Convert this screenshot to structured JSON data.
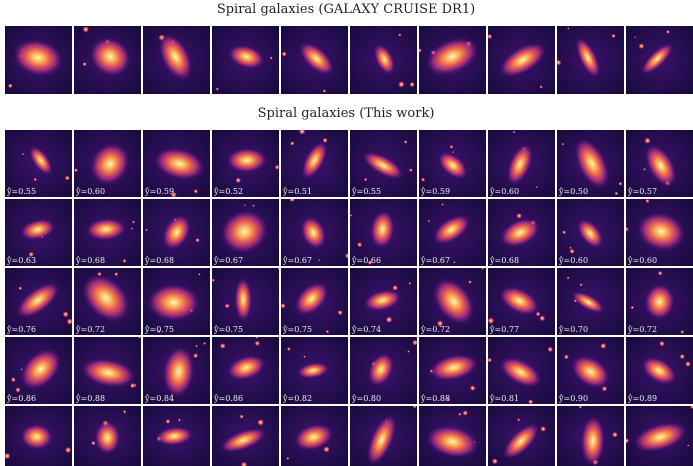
{
  "top": {
    "title": "Spiral galaxies (GALAXY CRUISE DR1)"
  },
  "bottom": {
    "title": "Spiral galaxies (This work)",
    "rows": [
      [
        "ŷ=0.55",
        "ŷ=0.60",
        "ŷ=0.59",
        "ŷ=0.52",
        "ŷ=0.51",
        "ŷ=0.55",
        "ŷ=0.59",
        "ŷ=0.60",
        "ŷ=0.50",
        "ŷ=0.57"
      ],
      [
        "ŷ=0.63",
        "ŷ=0.68",
        "ŷ=0.68",
        "ŷ=0.67",
        "ŷ=0.67",
        "ŷ=0.66",
        "ŷ=0.67",
        "ŷ=0.68",
        "ŷ=0.60",
        "ŷ=0.60"
      ],
      [
        "ŷ=0.76",
        "ŷ=0.72",
        "ŷ=0.75",
        "ŷ=0.75",
        "ŷ=0.75",
        "ŷ=0.74",
        "ŷ=0.72",
        "ŷ=0.77",
        "ŷ=0.70",
        "ŷ=0.72"
      ],
      [
        "ŷ=0.86",
        "ŷ=0.88",
        "ŷ=0.84",
        "ŷ=0.86",
        "ŷ=0.82",
        "ŷ=0.80",
        "ŷ=0.88",
        "ŷ=0.81",
        "ŷ=0.90",
        "ŷ=0.89"
      ]
    ]
  }
}
